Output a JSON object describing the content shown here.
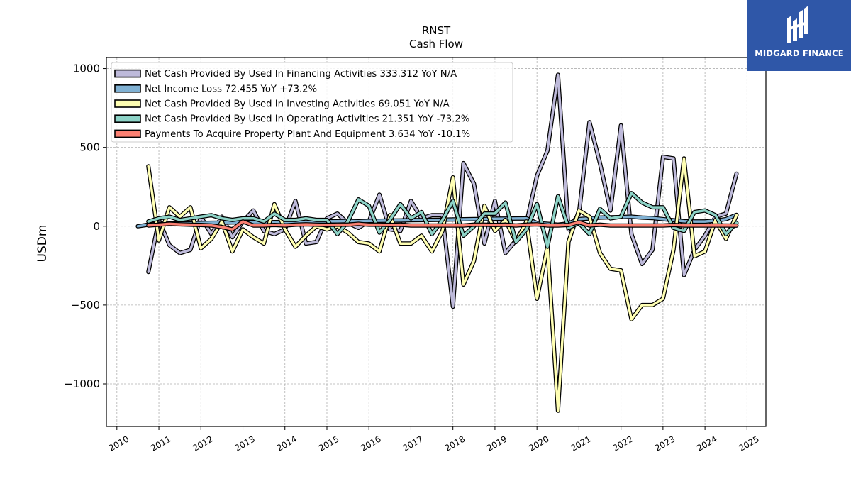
{
  "chart_data": {
    "type": "line",
    "title": "RNST",
    "subtitle": "Cash Flow",
    "xlabel": "",
    "ylabel": "USDm",
    "xlim": [
      2009.75,
      2025.45
    ],
    "ylim": [
      -1270,
      1070
    ],
    "x_ticks": [
      "2010",
      "2011",
      "2012",
      "2013",
      "2014",
      "2015",
      "2016",
      "2017",
      "2018",
      "2019",
      "2020",
      "2021",
      "2022",
      "2023",
      "2024",
      "2025"
    ],
    "y_ticks": [
      -1000,
      -500,
      0,
      500,
      1000
    ],
    "y_tick_labels": [
      "−1000",
      "−500",
      "0",
      "500",
      "1000"
    ],
    "grid": true,
    "legend_position": "top-left",
    "series": [
      {
        "name": "Net Cash Provided By Used In Financing Activities",
        "legend_label": "Net Cash Provided By Used In Financing Activities  333.312 YoY N/A",
        "color": "#bebada",
        "x": [
          2010.75,
          2011.0,
          2011.25,
          2011.5,
          2011.75,
          2012.0,
          2012.25,
          2012.5,
          2012.75,
          2013.0,
          2013.25,
          2013.5,
          2013.75,
          2014.0,
          2014.25,
          2014.5,
          2014.75,
          2015.0,
          2015.25,
          2015.5,
          2015.75,
          2016.0,
          2016.25,
          2016.5,
          2016.75,
          2017.0,
          2017.25,
          2017.5,
          2017.75,
          2018.0,
          2018.25,
          2018.5,
          2018.75,
          2019.0,
          2019.25,
          2019.5,
          2019.75,
          2020.0,
          2020.25,
          2020.5,
          2020.75,
          2021.0,
          2021.25,
          2021.5,
          2021.75,
          2022.0,
          2022.25,
          2022.5,
          2022.75,
          2023.0,
          2023.25,
          2023.5,
          2023.75,
          2024.0,
          2024.25,
          2024.5,
          2024.75
        ],
        "values": [
          -290,
          40,
          -120,
          -170,
          -150,
          60,
          -50,
          60,
          -70,
          30,
          100,
          -30,
          -50,
          -20,
          160,
          -110,
          -100,
          50,
          80,
          20,
          -10,
          30,
          200,
          -20,
          -30,
          160,
          50,
          70,
          70,
          -510,
          400,
          270,
          -110,
          160,
          -170,
          -90,
          20,
          320,
          480,
          960,
          -20,
          80,
          660,
          400,
          100,
          640,
          -50,
          -240,
          -150,
          440,
          430,
          -310,
          -150,
          -60,
          60,
          80,
          333
        ]
      },
      {
        "name": "Net Income Loss",
        "legend_label": "Net Income Loss  72.455 YoY +73.2%",
        "color": "#80b1d3",
        "x": [
          2010.5,
          2010.75,
          2011.0,
          2011.25,
          2011.5,
          2011.75,
          2012.0,
          2012.25,
          2012.5,
          2012.75,
          2013.0,
          2013.25,
          2013.5,
          2013.75,
          2014.0,
          2014.25,
          2014.5,
          2014.75,
          2015.0,
          2015.25,
          2015.5,
          2015.75,
          2016.0,
          2016.25,
          2016.5,
          2016.75,
          2017.0,
          2017.25,
          2017.5,
          2017.75,
          2018.0,
          2018.25,
          2018.5,
          2018.75,
          2019.0,
          2019.25,
          2019.5,
          2019.75,
          2020.0,
          2020.25,
          2020.5,
          2020.75,
          2021.0,
          2021.25,
          2021.5,
          2021.75,
          2022.0,
          2022.25,
          2022.5,
          2022.75,
          2023.0,
          2023.25,
          2023.5,
          2023.75,
          2024.0,
          2024.25,
          2024.5,
          2024.75
        ],
        "values": [
          0,
          10,
          15,
          17,
          18,
          18,
          20,
          22,
          23,
          24,
          25,
          25,
          24,
          26,
          27,
          28,
          29,
          30,
          31,
          32,
          33,
          32,
          34,
          35,
          36,
          37,
          38,
          39,
          40,
          41,
          43,
          44,
          45,
          46,
          47,
          48,
          49,
          50,
          20,
          15,
          10,
          18,
          45,
          50,
          55,
          56,
          58,
          60,
          55,
          52,
          45,
          38,
          32,
          30,
          30,
          36,
          45,
          72
        ]
      },
      {
        "name": "Net Cash Provided By Used In Investing Activities",
        "legend_label": "Net Cash Provided By Used In Investing Activities  69.051 YoY N/A",
        "color": "#ffffb3",
        "x": [
          2010.75,
          2011.0,
          2011.25,
          2011.5,
          2011.75,
          2012.0,
          2012.25,
          2012.5,
          2012.75,
          2013.0,
          2013.25,
          2013.5,
          2013.75,
          2014.0,
          2014.25,
          2014.5,
          2014.75,
          2015.0,
          2015.25,
          2015.5,
          2015.75,
          2016.0,
          2016.25,
          2016.5,
          2016.75,
          2017.0,
          2017.25,
          2017.5,
          2017.75,
          2018.0,
          2018.25,
          2018.5,
          2018.75,
          2019.0,
          2019.25,
          2019.5,
          2019.75,
          2020.0,
          2020.25,
          2020.5,
          2020.75,
          2021.0,
          2021.25,
          2021.5,
          2021.75,
          2022.0,
          2022.25,
          2022.5,
          2022.75,
          2023.0,
          2023.25,
          2023.5,
          2023.75,
          2024.0,
          2024.25,
          2024.5,
          2024.75
        ],
        "values": [
          380,
          -90,
          120,
          60,
          120,
          -140,
          -80,
          30,
          -160,
          -20,
          -70,
          -110,
          140,
          -20,
          -130,
          -60,
          0,
          -20,
          0,
          -40,
          -100,
          -110,
          -160,
          70,
          -110,
          -110,
          -60,
          -160,
          -30,
          310,
          -370,
          -220,
          130,
          -30,
          40,
          -100,
          30,
          -460,
          -130,
          -1170,
          -100,
          100,
          60,
          -170,
          -270,
          -280,
          -590,
          -500,
          -500,
          -460,
          -150,
          430,
          -190,
          -160,
          40,
          -80,
          69
        ]
      },
      {
        "name": "Net Cash Provided By Used In Operating Activities",
        "legend_label": "Net Cash Provided By Used In Operating Activities  21.351 YoY -73.2%",
        "color": "#8dd3c7",
        "x": [
          2010.75,
          2011.0,
          2011.25,
          2011.5,
          2011.75,
          2012.0,
          2012.25,
          2012.5,
          2012.75,
          2013.0,
          2013.25,
          2013.5,
          2013.75,
          2014.0,
          2014.25,
          2014.5,
          2014.75,
          2015.0,
          2015.25,
          2015.5,
          2015.75,
          2016.0,
          2016.25,
          2016.5,
          2016.75,
          2017.0,
          2017.25,
          2017.5,
          2017.75,
          2018.0,
          2018.25,
          2018.5,
          2018.75,
          2019.0,
          2019.25,
          2019.5,
          2019.75,
          2020.0,
          2020.25,
          2020.5,
          2020.75,
          2021.0,
          2021.25,
          2021.5,
          2021.75,
          2022.0,
          2022.25,
          2022.5,
          2022.75,
          2023.0,
          2023.25,
          2023.5,
          2023.75,
          2024.0,
          2024.25,
          2024.5,
          2024.75
        ],
        "values": [
          30,
          50,
          60,
          40,
          50,
          60,
          70,
          50,
          40,
          50,
          50,
          30,
          80,
          40,
          40,
          50,
          40,
          40,
          -50,
          30,
          170,
          130,
          -40,
          40,
          140,
          50,
          90,
          -50,
          40,
          160,
          -60,
          0,
          80,
          80,
          150,
          -100,
          -20,
          140,
          -130,
          190,
          -10,
          20,
          -50,
          110,
          50,
          60,
          210,
          150,
          120,
          120,
          -10,
          -30,
          90,
          100,
          70,
          -50,
          21
        ]
      },
      {
        "name": "Payments To Acquire Property Plant And Equipment",
        "legend_label": "Payments To Acquire Property Plant And Equipment  3.634 YoY -10.1%",
        "color": "#fb8072",
        "x": [
          2010.75,
          2011.0,
          2011.25,
          2011.5,
          2011.75,
          2012.0,
          2012.25,
          2012.5,
          2012.75,
          2013.0,
          2013.25,
          2013.5,
          2013.75,
          2014.0,
          2014.25,
          2014.5,
          2014.75,
          2015.0,
          2015.25,
          2015.5,
          2015.75,
          2016.0,
          2016.25,
          2016.5,
          2016.75,
          2017.0,
          2017.25,
          2017.5,
          2017.75,
          2018.0,
          2018.25,
          2018.5,
          2018.75,
          2019.0,
          2019.25,
          2019.5,
          2019.75,
          2020.0,
          2020.25,
          2020.5,
          2020.75,
          2021.0,
          2021.25,
          2021.5,
          2021.75,
          2022.0,
          2022.25,
          2022.5,
          2022.75,
          2023.0,
          2023.25,
          2023.5,
          2023.75,
          2024.0,
          2024.25,
          2024.5,
          2024.75
        ],
        "values": [
          5,
          10,
          15,
          12,
          10,
          8,
          5,
          -5,
          -20,
          30,
          5,
          5,
          8,
          5,
          10,
          12,
          10,
          8,
          10,
          10,
          15,
          10,
          10,
          8,
          10,
          5,
          5,
          5,
          5,
          5,
          5,
          10,
          10,
          8,
          10,
          5,
          10,
          12,
          5,
          5,
          8,
          25,
          5,
          10,
          5,
          5,
          5,
          5,
          5,
          5,
          8,
          5,
          5,
          5,
          5,
          5,
          4
        ]
      }
    ]
  },
  "branding": {
    "name": "MIDGARD FINANCE",
    "background": "#2f57a8"
  }
}
